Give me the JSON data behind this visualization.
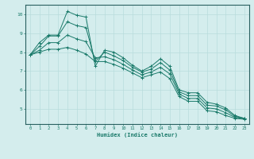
{
  "xlabel": "Humidex (Indice chaleur)",
  "ylabel": "",
  "bg_color": "#d4eded",
  "grid_color": "#b8dcdc",
  "line_color": "#1a7a6a",
  "xlim": [
    -0.5,
    23.5
  ],
  "ylim": [
    4.2,
    10.5
  ],
  "x_ticks": [
    0,
    1,
    2,
    3,
    4,
    5,
    6,
    7,
    8,
    9,
    10,
    11,
    12,
    13,
    14,
    15,
    16,
    17,
    18,
    19,
    20,
    21,
    22,
    23
  ],
  "y_ticks": [
    5,
    6,
    7,
    8,
    9,
    10
  ],
  "series": [
    [
      7.85,
      8.5,
      8.9,
      8.9,
      10.15,
      9.95,
      9.85,
      7.25,
      8.1,
      8.0,
      7.7,
      7.3,
      7.0,
      7.25,
      7.65,
      7.25,
      6.0,
      5.85,
      5.85,
      5.35,
      5.25,
      5.05,
      4.65,
      4.5
    ],
    [
      7.85,
      8.3,
      8.85,
      8.85,
      9.6,
      9.4,
      9.3,
      7.5,
      8.0,
      7.8,
      7.55,
      7.2,
      6.95,
      7.1,
      7.45,
      7.05,
      5.9,
      5.7,
      5.7,
      5.2,
      5.15,
      4.95,
      4.6,
      4.5
    ],
    [
      7.85,
      8.1,
      8.5,
      8.5,
      8.9,
      8.7,
      8.55,
      7.7,
      7.75,
      7.6,
      7.35,
      7.05,
      6.8,
      6.95,
      7.2,
      6.85,
      5.78,
      5.55,
      5.55,
      5.05,
      5.0,
      4.8,
      4.55,
      4.48
    ],
    [
      7.85,
      8.0,
      8.15,
      8.15,
      8.25,
      8.1,
      7.9,
      7.5,
      7.5,
      7.35,
      7.15,
      6.9,
      6.65,
      6.8,
      6.95,
      6.6,
      5.65,
      5.4,
      5.4,
      4.9,
      4.85,
      4.65,
      4.5,
      4.45
    ]
  ]
}
